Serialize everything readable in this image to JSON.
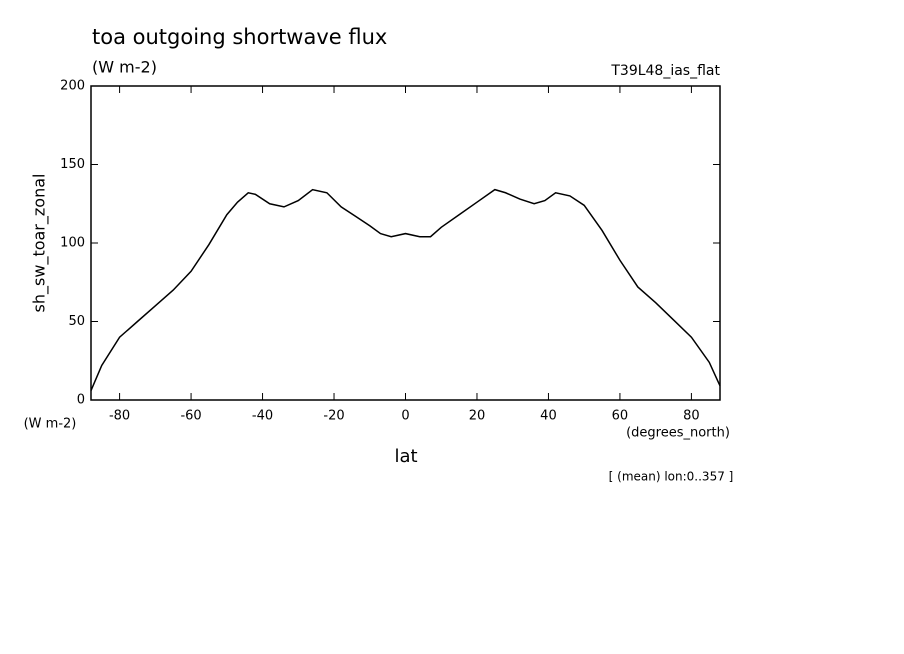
{
  "chart_data": {
    "type": "line",
    "title": "toa outgoing shortwave flux",
    "subtitle": "(W m-2)",
    "run_label": "T39L48_ias_flat",
    "y_label": "sh_sw_toar_zonal",
    "y_unit": "(W m-2)",
    "x_label": "lat",
    "x_unit": "(degrees_north)",
    "note": "[ (mean) lon:0..357 ]",
    "x": [
      -88,
      -85,
      -80,
      -75,
      -70,
      -65,
      -60,
      -55,
      -50,
      -47,
      -44,
      -42,
      -38,
      -34,
      -30,
      -26,
      -22,
      -18,
      -14,
      -10,
      -7,
      -4,
      0,
      4,
      7,
      10,
      15,
      20,
      25,
      28,
      32,
      36,
      39,
      42,
      46,
      50,
      55,
      60,
      65,
      70,
      75,
      80,
      85,
      88
    ],
    "series": [
      {
        "name": "sh_sw_toar_zonal",
        "color": "#000000",
        "values": [
          6,
          22,
          40,
          50,
          60,
          70,
          82,
          99,
          118,
          126,
          132,
          131,
          125,
          123,
          127,
          134,
          132,
          123,
          117,
          111,
          106,
          104,
          106,
          104,
          104,
          110,
          118,
          126,
          134,
          132,
          128,
          125,
          127,
          132,
          130,
          124,
          108,
          89,
          72,
          62,
          51,
          40,
          24,
          9
        ]
      }
    ],
    "xlim": [
      -88,
      88
    ],
    "ylim": [
      0,
      200
    ],
    "xticks": [
      -80,
      -60,
      -40,
      -20,
      0,
      20,
      40,
      60,
      80
    ],
    "yticks": [
      0,
      50,
      100,
      150,
      200
    ]
  }
}
